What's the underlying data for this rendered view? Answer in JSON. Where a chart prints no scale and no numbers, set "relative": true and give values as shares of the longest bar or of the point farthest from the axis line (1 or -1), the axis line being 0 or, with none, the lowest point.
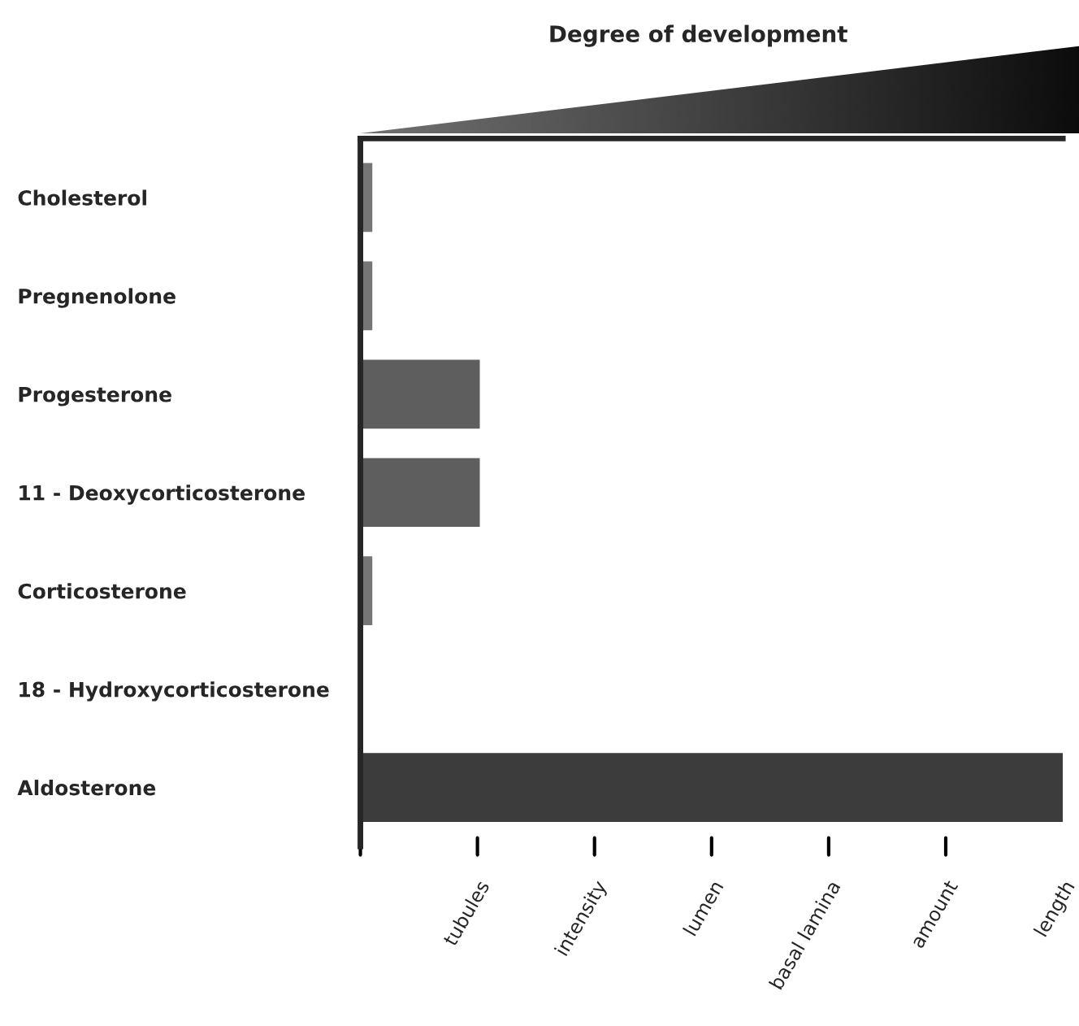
{
  "chart_data": {
    "type": "bar",
    "orientation": "horizontal",
    "title": "Degree of development",
    "relative": true,
    "categories": [
      "Cholesterol",
      "Pregnenolone",
      "Progesterone",
      "11 - Deoxycorticosterone",
      "Corticosterone",
      "18 - Hydroxycorticosterone",
      "Aldosterone"
    ],
    "values": [
      0.017,
      0.017,
      0.17,
      0.17,
      0.017,
      0,
      1
    ],
    "colors": [
      "#767676",
      "#767676",
      "#5e5e5e",
      "#5e5e5e",
      "#767676",
      "#767676",
      "#3c3c3c"
    ],
    "annotations": [
      "tubules",
      "intensity",
      "lumen",
      "basal lamina",
      "amount",
      "length"
    ],
    "grid": false,
    "legend": false
  }
}
